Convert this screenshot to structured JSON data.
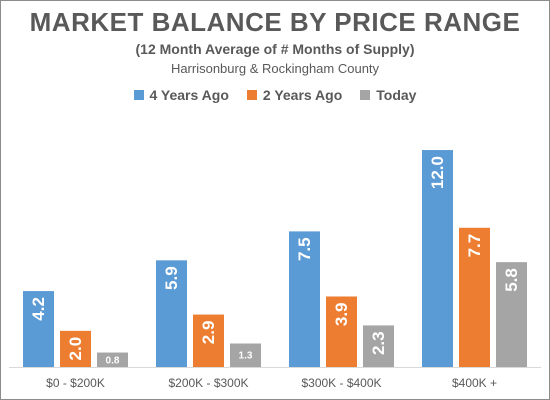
{
  "chart_data": {
    "type": "bar",
    "title": "MARKET BALANCE BY PRICE RANGE",
    "subtitle": "(12 Month Average of # Months of Supply)",
    "subsubtitle": "Harrisonburg & Rockingham County",
    "categories": [
      "$0 - $200K",
      "$200K - $300K",
      "$300K - $400K",
      "$400K +"
    ],
    "series": [
      {
        "name": "4 Years Ago",
        "values": [
          4.2,
          5.9,
          7.5,
          12.0
        ],
        "labels": [
          "4.2",
          "5.9",
          "7.5",
          "12.0"
        ],
        "color": "#5b9bd5"
      },
      {
        "name": "2 Years Ago",
        "values": [
          2.0,
          2.9,
          3.9,
          7.7
        ],
        "labels": [
          "2.0",
          "2.9",
          "3.9",
          "7.7"
        ],
        "color": "#ed7d31"
      },
      {
        "name": "Today",
        "values": [
          0.8,
          1.3,
          2.3,
          5.8
        ],
        "labels": [
          "0.8",
          "1.3",
          "2.3",
          "5.8"
        ],
        "color": "#a5a5a5"
      }
    ],
    "ylim": [
      0,
      12.5
    ],
    "grid": false,
    "legend_position": "top-center"
  }
}
